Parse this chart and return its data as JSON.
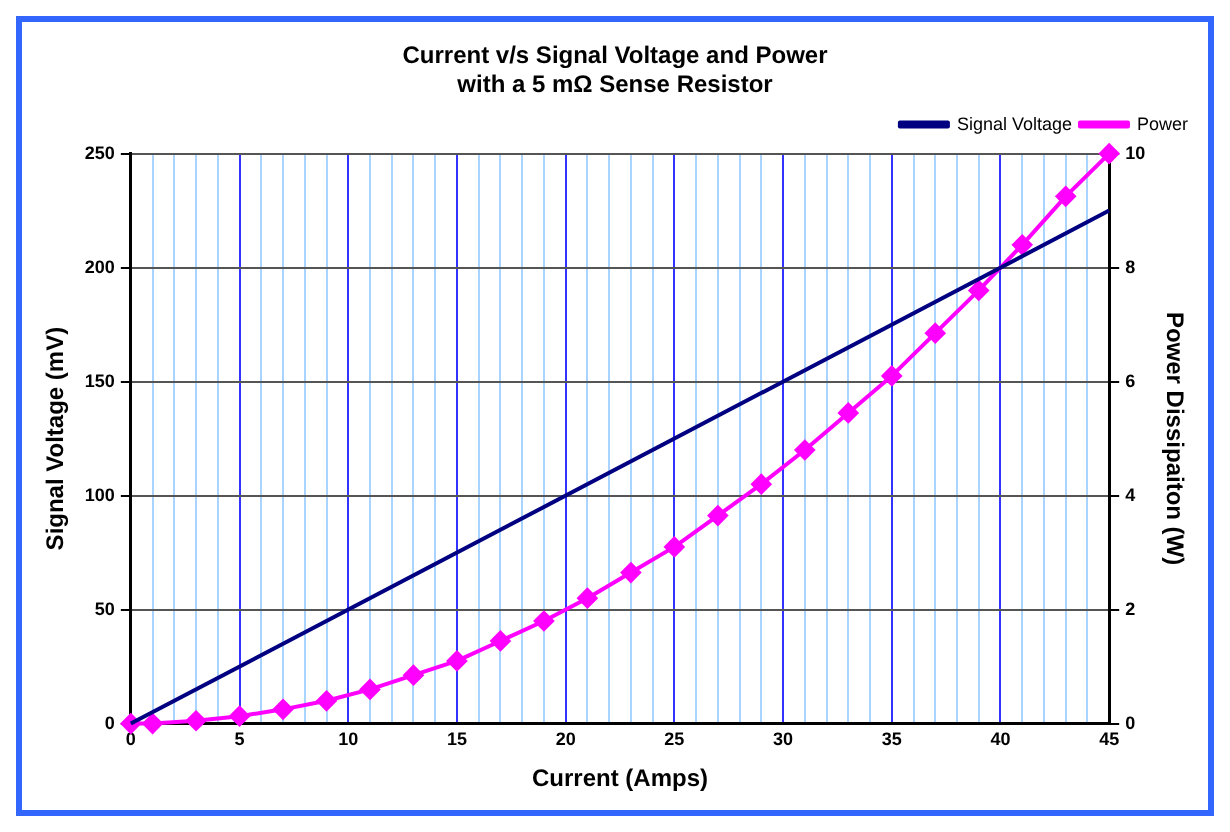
{
  "chart_data": {
    "type": "line",
    "title": "Current v/s Signal Voltage and Power\nwith a 5 mΩ Sense Resistor",
    "xlabel": "Current (Amps)",
    "ylabel": "Signal Voltage (mV)",
    "y2label": "Power Dissipaiton (W)",
    "xlim": [
      0,
      45
    ],
    "xticks": [
      0,
      {
        "value": 1,
        "label": null
      },
      {
        "value": 2,
        "label": null
      },
      {
        "value": 3,
        "label": null
      },
      {
        "value": 4,
        "label": null
      },
      5,
      {
        "value": 6,
        "label": null
      },
      {
        "value": 7,
        "label": null
      },
      {
        "value": 8,
        "label": null
      },
      {
        "value": 9,
        "label": null
      },
      10,
      {
        "value": 11,
        "label": null
      },
      {
        "value": 12,
        "label": null
      },
      {
        "value": 13,
        "label": null
      },
      {
        "value": 14,
        "label": null
      },
      15,
      {
        "value": 16,
        "label": null
      },
      {
        "value": 17,
        "label": null
      },
      {
        "value": 18,
        "label": null
      },
      {
        "value": 19,
        "label": null
      },
      20,
      {
        "value": 21,
        "label": null
      },
      {
        "value": 22,
        "label": null
      },
      {
        "value": 23,
        "label": null
      },
      {
        "value": 24,
        "label": null
      },
      25,
      {
        "value": 26,
        "label": null
      },
      {
        "value": 27,
        "label": null
      },
      {
        "value": 28,
        "label": null
      },
      {
        "value": 29,
        "label": null
      },
      30,
      {
        "value": 31,
        "label": null
      },
      {
        "value": 32,
        "label": null
      },
      {
        "value": 33,
        "label": null
      },
      {
        "value": 34,
        "label": null
      },
      35,
      {
        "value": 36,
        "label": null
      },
      {
        "value": 37,
        "label": null
      },
      {
        "value": 38,
        "label": null
      },
      {
        "value": 39,
        "label": null
      },
      40,
      {
        "value": 41,
        "label": null
      },
      {
        "value": 42,
        "label": null
      },
      {
        "value": 43,
        "label": null
      },
      {
        "value": 44,
        "label": null
      },
      45
    ],
    "ylim": [
      0,
      250
    ],
    "yticks": [
      0,
      50,
      100,
      150,
      200,
      250
    ],
    "y2lim": [
      0,
      10
    ],
    "y2ticks": [
      0,
      2,
      4,
      6,
      8,
      10
    ],
    "grid": true,
    "legend": "top right",
    "series": [
      {
        "name": "Signal Voltage",
        "color": "#000080",
        "marker": "none",
        "x": [
          0,
          45
        ],
        "values": [
          0,
          225
        ]
      },
      {
        "name": "Power",
        "color": "#ff00ff",
        "marker": "diamond",
        "axis": "y2",
        "x": [
          0,
          1,
          3,
          5,
          7,
          9,
          11,
          13,
          15,
          17,
          19,
          21,
          23,
          25,
          27,
          29,
          31,
          33,
          35,
          37,
          39,
          41,
          43,
          45
        ],
        "values": [
          0,
          0,
          0.05,
          0.13,
          0.25,
          0.4,
          0.6,
          0.85,
          1.1,
          1.45,
          1.8,
          2.2,
          2.65,
          3.1,
          3.65,
          4.2,
          4.8,
          5.45,
          6.1,
          6.85,
          7.6,
          8.4,
          9.25,
          10
        ]
      }
    ]
  }
}
